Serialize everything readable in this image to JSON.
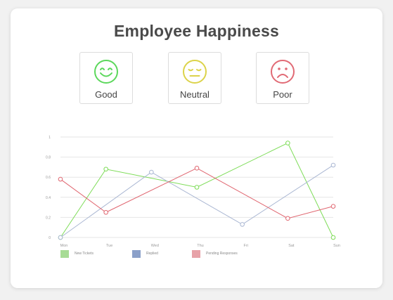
{
  "title": "Employee Happiness",
  "moods": [
    {
      "label": "Good",
      "icon": "happy-face-icon",
      "color": "#5cd85c"
    },
    {
      "label": "Neutral",
      "icon": "neutral-face-icon",
      "color": "#dcd34a"
    },
    {
      "label": "Poor",
      "icon": "sad-face-icon",
      "color": "#e16a75"
    }
  ],
  "chart_data": {
    "type": "line",
    "categories": [
      "Mon",
      "Tue",
      "Wed",
      "Thu",
      "Fri",
      "Sat",
      "Sun"
    ],
    "ylim": [
      0,
      1
    ],
    "yticks": [
      "0",
      "0.2",
      "0.4",
      "0.6",
      "0.8",
      "1"
    ],
    "grid": true,
    "legend_position": "bottom-left",
    "series": [
      {
        "name": "New Tickets",
        "color": "#7ddc57",
        "values": [
          0,
          0.68,
          null,
          0.5,
          null,
          0.94,
          0
        ]
      },
      {
        "name": "Replied",
        "color": "#a9b6d2",
        "values": [
          0,
          null,
          0.65,
          null,
          0.13,
          null,
          0.72
        ]
      },
      {
        "name": "Pending Responses",
        "color": "#e06670",
        "values": [
          0.58,
          0.25,
          null,
          0.69,
          null,
          0.19,
          0.31
        ]
      }
    ],
    "legend_colors": [
      "#a7dc95",
      "#8ba0c9",
      "#e7a2a8"
    ]
  }
}
